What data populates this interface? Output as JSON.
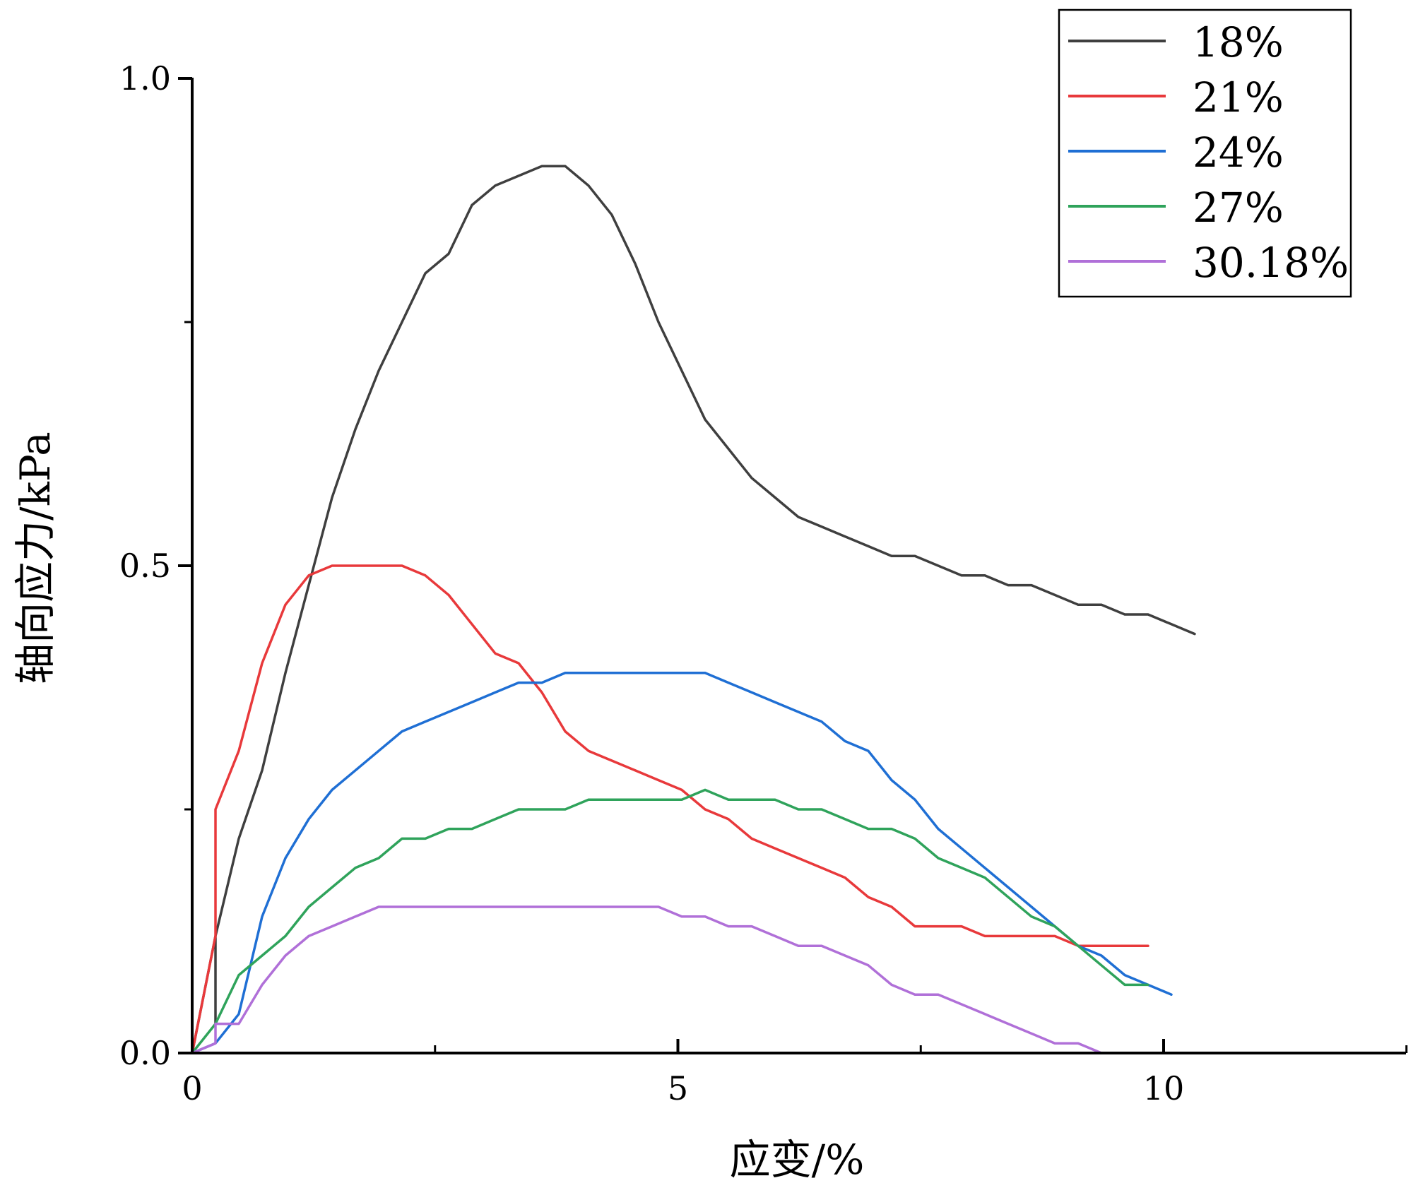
{
  "chart_data": {
    "type": "line",
    "title": "",
    "xlabel": "应变/%",
    "ylabel": "轴向应力/kPa",
    "xlim": [
      0,
      12.5
    ],
    "ylim": [
      0,
      1.0
    ],
    "x_ticks": [
      {
        "value": 0,
        "label": "0"
      },
      {
        "value": 5,
        "label": "5"
      },
      {
        "value": 10,
        "label": "10"
      }
    ],
    "y_ticks": [
      {
        "value": 0,
        "label": "0.0"
      },
      {
        "value": 0.5,
        "label": "0.5"
      },
      {
        "value": 1.0,
        "label": "1.0"
      }
    ],
    "grid": false,
    "legend_position": "top-right",
    "series": [
      {
        "name": "18%",
        "color": "#3f3f3f",
        "points": [
          [
            0,
            0
          ],
          [
            0.24,
            0.12
          ],
          [
            0.24,
            0.03
          ],
          [
            0.24,
            0.12
          ],
          [
            0.48,
            0.22
          ],
          [
            0.72,
            0.29
          ],
          [
            0.96,
            0.39
          ],
          [
            1.2,
            0.48
          ],
          [
            1.44,
            0.57
          ],
          [
            1.68,
            0.64
          ],
          [
            1.92,
            0.7
          ],
          [
            2.16,
            0.75
          ],
          [
            2.4,
            0.8
          ],
          [
            2.64,
            0.82
          ],
          [
            2.88,
            0.87
          ],
          [
            3.12,
            0.89
          ],
          [
            3.36,
            0.9
          ],
          [
            3.6,
            0.91
          ],
          [
            3.84,
            0.91
          ],
          [
            4.08,
            0.89
          ],
          [
            4.32,
            0.86
          ],
          [
            4.56,
            0.81
          ],
          [
            4.8,
            0.75
          ],
          [
            5.04,
            0.7
          ],
          [
            5.28,
            0.65
          ],
          [
            5.52,
            0.62
          ],
          [
            5.76,
            0.59
          ],
          [
            6.0,
            0.57
          ],
          [
            6.24,
            0.55
          ],
          [
            6.48,
            0.54
          ],
          [
            6.72,
            0.53
          ],
          [
            6.96,
            0.52
          ],
          [
            7.2,
            0.51
          ],
          [
            7.44,
            0.51
          ],
          [
            7.68,
            0.5
          ],
          [
            7.92,
            0.49
          ],
          [
            8.16,
            0.49
          ],
          [
            8.4,
            0.48
          ],
          [
            8.64,
            0.48
          ],
          [
            8.88,
            0.47
          ],
          [
            9.12,
            0.46
          ],
          [
            9.36,
            0.46
          ],
          [
            9.6,
            0.45
          ],
          [
            9.84,
            0.45
          ],
          [
            10.08,
            0.44
          ],
          [
            10.32,
            0.43
          ]
        ]
      },
      {
        "name": "21%",
        "color": "#e8393b",
        "points": [
          [
            0,
            0
          ],
          [
            0.24,
            0.12
          ],
          [
            0.24,
            0.25
          ],
          [
            0.48,
            0.31
          ],
          [
            0.72,
            0.4
          ],
          [
            0.96,
            0.46
          ],
          [
            1.2,
            0.49
          ],
          [
            1.44,
            0.5
          ],
          [
            1.68,
            0.5
          ],
          [
            1.92,
            0.5
          ],
          [
            2.16,
            0.5
          ],
          [
            2.4,
            0.49
          ],
          [
            2.64,
            0.47
          ],
          [
            2.88,
            0.44
          ],
          [
            3.12,
            0.41
          ],
          [
            3.36,
            0.4
          ],
          [
            3.6,
            0.37
          ],
          [
            3.84,
            0.33
          ],
          [
            4.08,
            0.31
          ],
          [
            4.32,
            0.3
          ],
          [
            4.56,
            0.29
          ],
          [
            4.8,
            0.28
          ],
          [
            5.04,
            0.27
          ],
          [
            5.28,
            0.25
          ],
          [
            5.52,
            0.24
          ],
          [
            5.76,
            0.22
          ],
          [
            6.0,
            0.21
          ],
          [
            6.24,
            0.2
          ],
          [
            6.48,
            0.19
          ],
          [
            6.72,
            0.18
          ],
          [
            6.96,
            0.16
          ],
          [
            7.2,
            0.15
          ],
          [
            7.44,
            0.13
          ],
          [
            7.68,
            0.13
          ],
          [
            7.92,
            0.13
          ],
          [
            8.16,
            0.12
          ],
          [
            8.4,
            0.12
          ],
          [
            8.64,
            0.12
          ],
          [
            8.88,
            0.12
          ],
          [
            9.12,
            0.11
          ],
          [
            9.36,
            0.11
          ],
          [
            9.6,
            0.11
          ],
          [
            9.84,
            0.11
          ]
        ]
      },
      {
        "name": "24%",
        "color": "#1f6fd4",
        "points": [
          [
            0,
            0
          ],
          [
            0.24,
            0.01
          ],
          [
            0.48,
            0.04
          ],
          [
            0.72,
            0.14
          ],
          [
            0.96,
            0.2
          ],
          [
            1.2,
            0.24
          ],
          [
            1.44,
            0.27
          ],
          [
            1.68,
            0.29
          ],
          [
            1.92,
            0.31
          ],
          [
            2.16,
            0.33
          ],
          [
            2.4,
            0.34
          ],
          [
            2.64,
            0.35
          ],
          [
            2.88,
            0.36
          ],
          [
            3.12,
            0.37
          ],
          [
            3.36,
            0.38
          ],
          [
            3.6,
            0.38
          ],
          [
            3.84,
            0.39
          ],
          [
            4.08,
            0.39
          ],
          [
            4.32,
            0.39
          ],
          [
            4.56,
            0.39
          ],
          [
            4.8,
            0.39
          ],
          [
            5.04,
            0.39
          ],
          [
            5.28,
            0.39
          ],
          [
            5.52,
            0.38
          ],
          [
            5.76,
            0.37
          ],
          [
            6.0,
            0.36
          ],
          [
            6.24,
            0.35
          ],
          [
            6.48,
            0.34
          ],
          [
            6.72,
            0.32
          ],
          [
            6.96,
            0.31
          ],
          [
            7.2,
            0.28
          ],
          [
            7.44,
            0.26
          ],
          [
            7.68,
            0.23
          ],
          [
            7.92,
            0.21
          ],
          [
            8.16,
            0.19
          ],
          [
            8.4,
            0.17
          ],
          [
            8.64,
            0.15
          ],
          [
            8.88,
            0.13
          ],
          [
            9.12,
            0.11
          ],
          [
            9.36,
            0.1
          ],
          [
            9.6,
            0.08
          ],
          [
            9.84,
            0.07
          ],
          [
            10.08,
            0.06
          ]
        ]
      },
      {
        "name": "27%",
        "color": "#2fa35b",
        "points": [
          [
            0,
            0
          ],
          [
            0.24,
            0.03
          ],
          [
            0.48,
            0.08
          ],
          [
            0.72,
            0.1
          ],
          [
            0.96,
            0.12
          ],
          [
            1.2,
            0.15
          ],
          [
            1.44,
            0.17
          ],
          [
            1.68,
            0.19
          ],
          [
            1.92,
            0.2
          ],
          [
            2.16,
            0.22
          ],
          [
            2.4,
            0.22
          ],
          [
            2.64,
            0.23
          ],
          [
            2.88,
            0.23
          ],
          [
            3.12,
            0.24
          ],
          [
            3.36,
            0.25
          ],
          [
            3.6,
            0.25
          ],
          [
            3.84,
            0.25
          ],
          [
            4.08,
            0.26
          ],
          [
            4.32,
            0.26
          ],
          [
            4.56,
            0.26
          ],
          [
            4.8,
            0.26
          ],
          [
            5.04,
            0.26
          ],
          [
            5.28,
            0.27
          ],
          [
            5.52,
            0.26
          ],
          [
            5.76,
            0.26
          ],
          [
            6.0,
            0.26
          ],
          [
            6.24,
            0.25
          ],
          [
            6.48,
            0.25
          ],
          [
            6.72,
            0.24
          ],
          [
            6.96,
            0.23
          ],
          [
            7.2,
            0.23
          ],
          [
            7.44,
            0.22
          ],
          [
            7.68,
            0.2
          ],
          [
            7.92,
            0.19
          ],
          [
            8.16,
            0.18
          ],
          [
            8.4,
            0.16
          ],
          [
            8.64,
            0.14
          ],
          [
            8.88,
            0.13
          ],
          [
            9.12,
            0.11
          ],
          [
            9.36,
            0.09
          ],
          [
            9.6,
            0.07
          ],
          [
            9.84,
            0.07
          ]
        ]
      },
      {
        "name": "30.18%",
        "color": "#b070d8",
        "points": [
          [
            0,
            0
          ],
          [
            0.24,
            0.01
          ],
          [
            0.24,
            0.03
          ],
          [
            0.48,
            0.03
          ],
          [
            0.72,
            0.07
          ],
          [
            0.96,
            0.1
          ],
          [
            1.2,
            0.12
          ],
          [
            1.44,
            0.13
          ],
          [
            1.68,
            0.14
          ],
          [
            1.92,
            0.15
          ],
          [
            2.16,
            0.15
          ],
          [
            2.4,
            0.15
          ],
          [
            2.64,
            0.15
          ],
          [
            2.88,
            0.15
          ],
          [
            3.12,
            0.15
          ],
          [
            3.36,
            0.15
          ],
          [
            3.6,
            0.15
          ],
          [
            3.84,
            0.15
          ],
          [
            4.08,
            0.15
          ],
          [
            4.32,
            0.15
          ],
          [
            4.56,
            0.15
          ],
          [
            4.8,
            0.15
          ],
          [
            5.04,
            0.14
          ],
          [
            5.28,
            0.14
          ],
          [
            5.52,
            0.13
          ],
          [
            5.76,
            0.13
          ],
          [
            6.0,
            0.12
          ],
          [
            6.24,
            0.11
          ],
          [
            6.48,
            0.11
          ],
          [
            6.72,
            0.1
          ],
          [
            6.96,
            0.09
          ],
          [
            7.2,
            0.07
          ],
          [
            7.44,
            0.06
          ],
          [
            7.68,
            0.06
          ],
          [
            7.92,
            0.05
          ],
          [
            8.16,
            0.04
          ],
          [
            8.4,
            0.03
          ],
          [
            8.64,
            0.02
          ],
          [
            8.88,
            0.01
          ],
          [
            9.12,
            0.01
          ],
          [
            9.36,
            0.0
          ],
          [
            9.6,
            0.0
          ],
          [
            9.84,
            0.0
          ]
        ]
      }
    ]
  }
}
